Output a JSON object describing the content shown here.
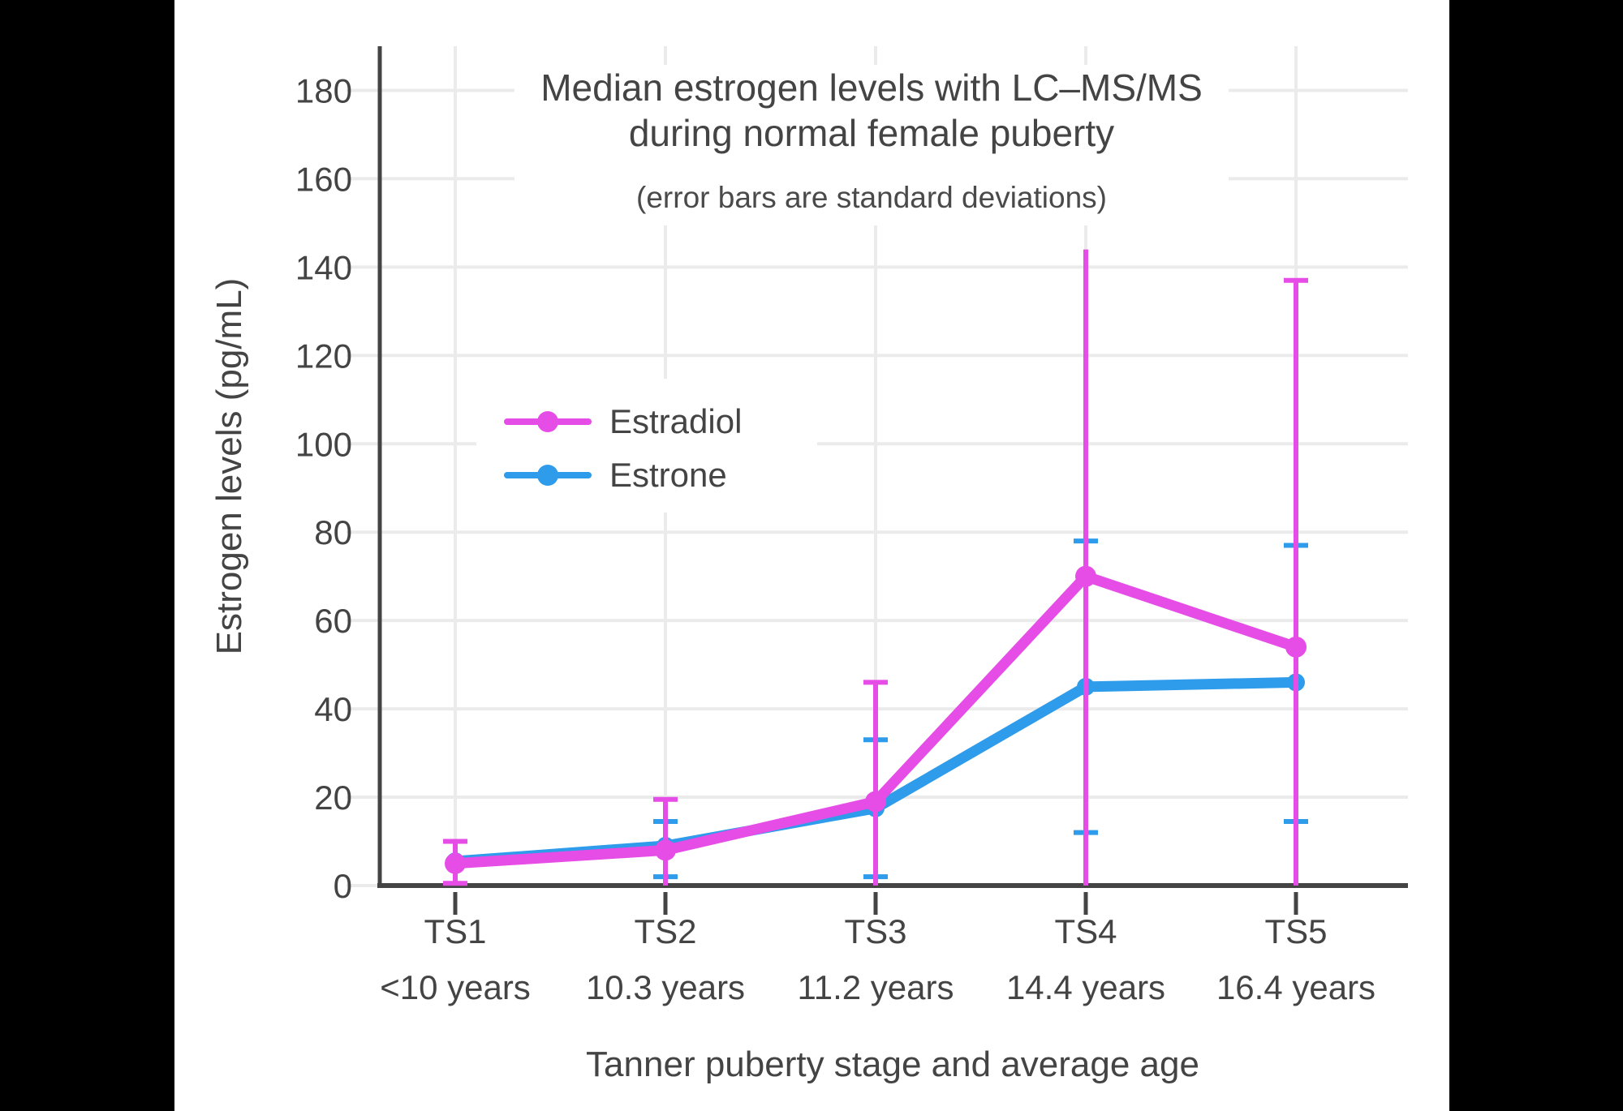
{
  "chart_data": {
    "type": "line",
    "title_line1": "Median estrogen levels with LC–MS/MS",
    "title_line2": "during normal female puberty",
    "subtitle": "(error bars are standard deviations)",
    "xlabel": "Tanner puberty stage and average age",
    "ylabel": "Estrogen levels (pg/mL)",
    "categories": [
      "TS1",
      "TS2",
      "TS3",
      "TS4",
      "TS5"
    ],
    "category_ages": [
      "<10 years",
      "10.3 years",
      "11.2 years",
      "14.4 years",
      "16.4 years"
    ],
    "yticks": [
      0,
      20,
      40,
      60,
      80,
      100,
      120,
      140,
      160,
      180
    ],
    "ylim": [
      0,
      190
    ],
    "grid": true,
    "legend_position": "inside-upper-left",
    "legend_order": [
      1,
      0
    ],
    "series": [
      {
        "name": "Estrone",
        "color": "#2E9BEB",
        "values": [
          5.5,
          9,
          17.5,
          45,
          46
        ],
        "error_upper": [
          null,
          14.5,
          33,
          78,
          77
        ],
        "error_lower": [
          null,
          2,
          2,
          12,
          14.5
        ],
        "upper_caps": [
          true,
          true,
          true,
          true,
          true
        ]
      },
      {
        "name": "Estradiol",
        "color": "#E64CE6",
        "values": [
          5,
          8,
          19,
          70,
          54
        ],
        "error_upper": [
          10,
          19.5,
          46,
          144,
          137
        ],
        "error_lower": [
          0.5,
          null,
          null,
          null,
          null
        ],
        "upper_caps": [
          true,
          true,
          true,
          false,
          true
        ]
      }
    ]
  }
}
